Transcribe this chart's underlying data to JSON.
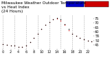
{
  "title": "Milwaukee Weather Outdoor Temperature\nvs Heat Index\n(24 Hours)",
  "hours": [
    0,
    1,
    2,
    3,
    4,
    5,
    6,
    7,
    8,
    9,
    10,
    11,
    12,
    13,
    14,
    15,
    16,
    17,
    18,
    19,
    20,
    21,
    22,
    23
  ],
  "temp": [
    46,
    45,
    44,
    44,
    43,
    43,
    44,
    48,
    53,
    58,
    63,
    68,
    71,
    74,
    75,
    73,
    68,
    62,
    58,
    55,
    53,
    51,
    50,
    49
  ],
  "heat_index": [
    46,
    45,
    44,
    44,
    43,
    43,
    44,
    48,
    53,
    58,
    63,
    68,
    71,
    74,
    76,
    74,
    69,
    63,
    58,
    55,
    53,
    51,
    50,
    49
  ],
  "temp_color": "#cc0000",
  "heat_color": "#000000",
  "bg_color": "#ffffff",
  "plot_bg": "#ffffff",
  "grid_color": "#888888",
  "ylim": [
    40,
    80
  ],
  "legend_blue": "#0000cc",
  "legend_red": "#cc0000",
  "title_fontsize": 4.2,
  "tick_fontsize": 3.5
}
